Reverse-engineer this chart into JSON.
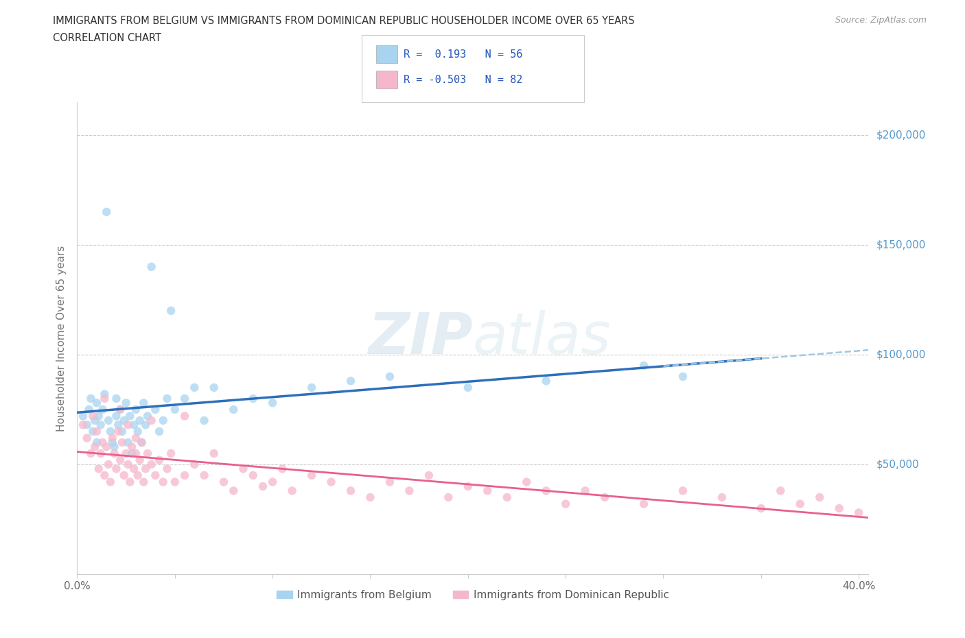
{
  "title_line1": "IMMIGRANTS FROM BELGIUM VS IMMIGRANTS FROM DOMINICAN REPUBLIC HOUSEHOLDER INCOME OVER 65 YEARS",
  "title_line2": "CORRELATION CHART",
  "source": "Source: ZipAtlas.com",
  "ylabel": "Householder Income Over 65 years",
  "xlim": [
    0.0,
    0.405
  ],
  "ylim": [
    0,
    215000
  ],
  "xticks": [
    0.0,
    0.05,
    0.1,
    0.15,
    0.2,
    0.25,
    0.3,
    0.35,
    0.4
  ],
  "yticks": [
    0,
    50000,
    100000,
    150000,
    200000
  ],
  "ytick_labels_right": [
    "",
    "$50,000",
    "$100,000",
    "$150,000",
    "$200,000"
  ],
  "r_belgium": 0.193,
  "n_belgium": 56,
  "r_dominican": -0.503,
  "n_dominican": 82,
  "belgium_color": "#a8d4f0",
  "dominican_color": "#f5b8cb",
  "belgium_line_color": "#2e6fbc",
  "dominican_line_color": "#e8608a",
  "dashed_line_color": "#a0c8e0",
  "background_color": "#ffffff",
  "legend_label_belgium": "Immigrants from Belgium",
  "legend_label_dominican": "Immigrants from Dominican Republic",
  "watermark": "ZIPAtlas",
  "belgium_scatter_x": [
    0.003,
    0.005,
    0.006,
    0.007,
    0.008,
    0.009,
    0.01,
    0.01,
    0.011,
    0.012,
    0.013,
    0.014,
    0.015,
    0.016,
    0.017,
    0.018,
    0.019,
    0.02,
    0.02,
    0.021,
    0.022,
    0.023,
    0.024,
    0.025,
    0.026,
    0.027,
    0.028,
    0.029,
    0.03,
    0.031,
    0.032,
    0.033,
    0.034,
    0.035,
    0.036,
    0.038,
    0.04,
    0.042,
    0.044,
    0.046,
    0.048,
    0.05,
    0.055,
    0.06,
    0.065,
    0.07,
    0.08,
    0.09,
    0.1,
    0.12,
    0.14,
    0.16,
    0.2,
    0.24,
    0.29,
    0.31
  ],
  "belgium_scatter_y": [
    72000,
    68000,
    75000,
    80000,
    65000,
    70000,
    60000,
    78000,
    72000,
    68000,
    75000,
    82000,
    165000,
    70000,
    65000,
    60000,
    58000,
    72000,
    80000,
    68000,
    75000,
    65000,
    70000,
    78000,
    60000,
    72000,
    55000,
    68000,
    75000,
    65000,
    70000,
    60000,
    78000,
    68000,
    72000,
    140000,
    75000,
    65000,
    70000,
    80000,
    120000,
    75000,
    80000,
    85000,
    70000,
    85000,
    75000,
    80000,
    78000,
    85000,
    88000,
    90000,
    85000,
    88000,
    95000,
    90000
  ],
  "dominican_scatter_x": [
    0.003,
    0.005,
    0.007,
    0.008,
    0.009,
    0.01,
    0.011,
    0.012,
    0.013,
    0.014,
    0.015,
    0.016,
    0.017,
    0.018,
    0.019,
    0.02,
    0.021,
    0.022,
    0.023,
    0.024,
    0.025,
    0.026,
    0.027,
    0.028,
    0.029,
    0.03,
    0.031,
    0.032,
    0.033,
    0.034,
    0.035,
    0.036,
    0.038,
    0.04,
    0.042,
    0.044,
    0.046,
    0.048,
    0.05,
    0.055,
    0.06,
    0.065,
    0.07,
    0.075,
    0.08,
    0.085,
    0.09,
    0.095,
    0.1,
    0.105,
    0.11,
    0.12,
    0.13,
    0.14,
    0.15,
    0.16,
    0.17,
    0.18,
    0.19,
    0.2,
    0.21,
    0.22,
    0.23,
    0.24,
    0.25,
    0.26,
    0.27,
    0.29,
    0.31,
    0.33,
    0.35,
    0.36,
    0.37,
    0.38,
    0.39,
    0.4,
    0.014,
    0.022,
    0.026,
    0.03,
    0.038,
    0.055
  ],
  "dominican_scatter_y": [
    68000,
    62000,
    55000,
    72000,
    58000,
    65000,
    48000,
    55000,
    60000,
    45000,
    58000,
    50000,
    42000,
    62000,
    55000,
    48000,
    65000,
    52000,
    60000,
    45000,
    55000,
    50000,
    42000,
    58000,
    48000,
    55000,
    45000,
    52000,
    60000,
    42000,
    48000,
    55000,
    50000,
    45000,
    52000,
    42000,
    48000,
    55000,
    42000,
    45000,
    50000,
    45000,
    55000,
    42000,
    38000,
    48000,
    45000,
    40000,
    42000,
    48000,
    38000,
    45000,
    42000,
    38000,
    35000,
    42000,
    38000,
    45000,
    35000,
    40000,
    38000,
    35000,
    42000,
    38000,
    32000,
    38000,
    35000,
    32000,
    38000,
    35000,
    30000,
    38000,
    32000,
    35000,
    30000,
    28000,
    80000,
    75000,
    68000,
    62000,
    70000,
    72000
  ]
}
